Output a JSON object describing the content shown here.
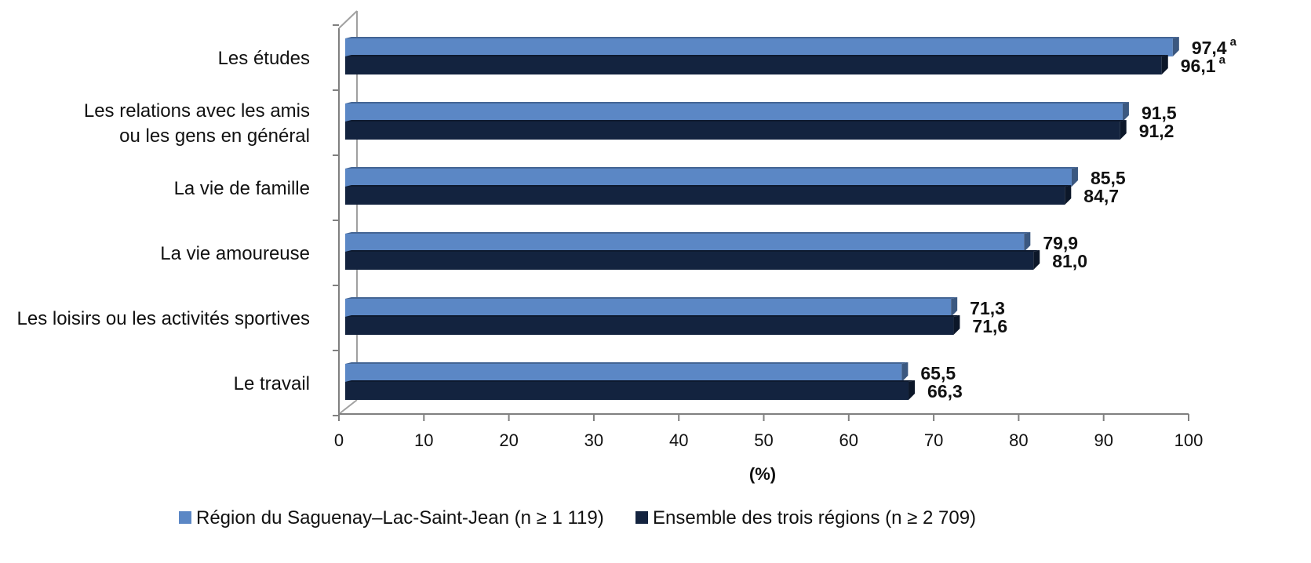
{
  "chart_data": {
    "type": "bar",
    "orientation": "horizontal",
    "categories": [
      [
        "Les études"
      ],
      [
        "Les relations avec les amis",
        "ou les gens en général"
      ],
      [
        "La vie de famille"
      ],
      [
        "La vie amoureuse"
      ],
      [
        "Les loisirs ou les activités sportives"
      ],
      [
        "Le travail"
      ]
    ],
    "series": [
      {
        "name": "Région du Saguenay–Lac-Saint-Jean (n ≥ 1 119)",
        "color": "#5b87c5",
        "values": [
          97.4,
          91.5,
          85.5,
          79.9,
          71.3,
          65.5
        ],
        "labels": [
          "97,4",
          "91,5",
          "85,5",
          "79,9",
          "71,3",
          "65,5"
        ],
        "superscripts": [
          "a",
          "",
          "",
          "",
          "",
          ""
        ]
      },
      {
        "name": "Ensemble des trois régions (n ≥ 2 709)",
        "color": "#13233f",
        "values": [
          96.1,
          91.2,
          84.7,
          81.0,
          71.6,
          66.3
        ],
        "labels": [
          "96,1",
          "91,2",
          "84,7",
          "81,0",
          "71,6",
          "66,3"
        ],
        "superscripts": [
          "a",
          "",
          "",
          "",
          "",
          ""
        ]
      }
    ],
    "xlabel": "(%)",
    "xlim": [
      0,
      100
    ],
    "xticks": [
      "0",
      "10",
      "20",
      "30",
      "40",
      "50",
      "60",
      "70",
      "80",
      "90",
      "100"
    ],
    "legend_position": "bottom",
    "grid": false,
    "three_d": true
  }
}
